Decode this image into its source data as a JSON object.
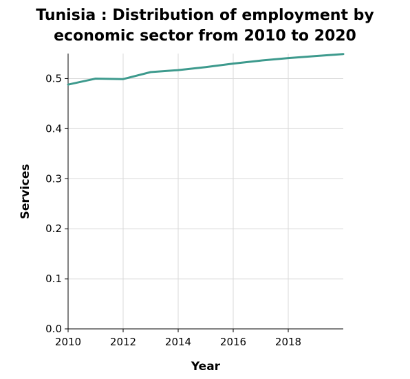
{
  "chart_data": {
    "type": "line",
    "title_lines": [
      "Tunisia : Distribution of employment by",
      "economic sector from 2010 to 2020"
    ],
    "xlabel": "Year",
    "ylabel": "Services",
    "xlim": [
      2010,
      2020
    ],
    "ylim": [
      0,
      0.55
    ],
    "xticks": [
      2010,
      2012,
      2014,
      2016,
      2018
    ],
    "xtick_labels": [
      "2010",
      "2012",
      "2014",
      "2016",
      "2018"
    ],
    "yticks": [
      0.0,
      0.1,
      0.2,
      0.3,
      0.4,
      0.5
    ],
    "ytick_labels": [
      "0.0",
      "0.1",
      "0.2",
      "0.3",
      "0.4",
      "0.5"
    ],
    "grid": true,
    "line_color": "#3d9a8d",
    "grid_color": "#d9d9d9",
    "x": [
      2010,
      2011,
      2012,
      2013,
      2014,
      2015,
      2016,
      2017,
      2018,
      2019,
      2020
    ],
    "y": [
      0.488,
      0.5,
      0.499,
      0.513,
      0.517,
      0.523,
      0.53,
      0.536,
      0.541,
      0.545,
      0.549
    ]
  }
}
